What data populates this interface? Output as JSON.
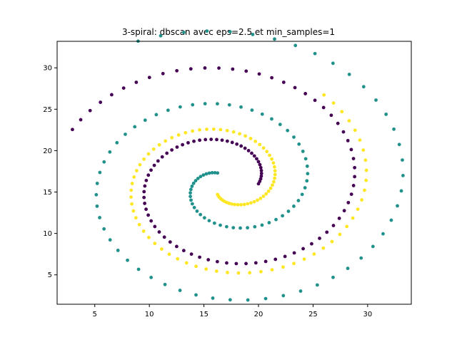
{
  "chart_data": {
    "type": "scatter",
    "title": "3-spiral: dbscan avec eps=2.5 et min_samples=1",
    "xlabel": "",
    "ylabel": "",
    "xlim": [
      1.55,
      34.0
    ],
    "ylim": [
      1.45,
      33.2
    ],
    "x_ticks": [
      5,
      10,
      15,
      20,
      25,
      30
    ],
    "y_ticks": [
      5,
      10,
      15,
      20,
      25,
      30
    ],
    "x_tick_labels": [
      "5",
      "10",
      "15",
      "20",
      "25",
      "30"
    ],
    "y_tick_labels": [
      "5",
      "10",
      "15",
      "20",
      "25",
      "30"
    ],
    "grid": false,
    "legend": false,
    "series": [
      {
        "color": "#440154",
        "spiral_center": [
          17.0,
          16.0
        ],
        "radius_start": 3.0,
        "radius_end": 15.5,
        "angle_start_deg": 0,
        "angle_end_deg": 515,
        "point_count": 100,
        "marker": "circle"
      },
      {
        "color": "#21918c",
        "spiral_center": [
          17.0,
          16.0
        ],
        "radius_start": 1.5,
        "radius_end": 19.0,
        "angle_start_deg": 120,
        "angle_end_deg": 835,
        "point_count": 110,
        "marker": "circle"
      },
      {
        "color": "#fde725",
        "spiral_center": [
          17.0,
          16.0
        ],
        "radius_start": 1.5,
        "radius_end": 14.0,
        "angle_start_deg": 240,
        "angle_end_deg": 770,
        "point_count": 100,
        "marker": "circle"
      }
    ]
  }
}
